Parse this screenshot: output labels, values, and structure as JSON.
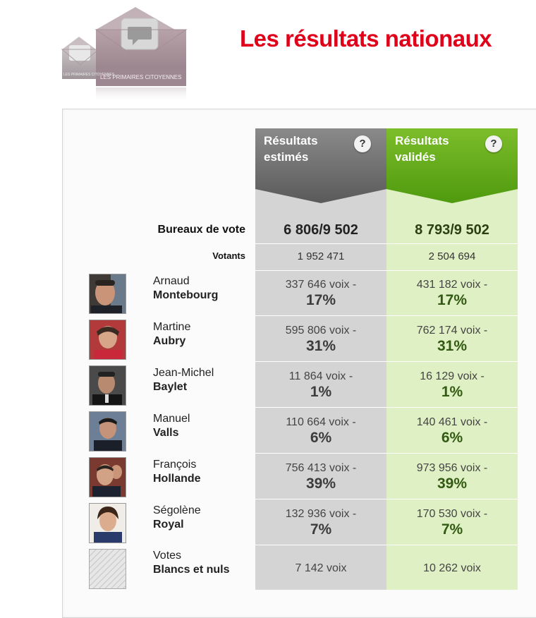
{
  "header": {
    "title": "Les résultats nationaux",
    "logo_text": "LES PRIMAIRES CITOYENNES",
    "logo_text_small": "LES PRIMAIRES CITOYENNES"
  },
  "columns": {
    "estimated": {
      "title_line1": "Résultats",
      "title_line2": "estimés",
      "help": "?"
    },
    "validated": {
      "title_line1": "Résultats",
      "title_line2": "validés",
      "help": "?"
    }
  },
  "summary": {
    "bureaux_label": "Bureaux de vote",
    "bureaux_estimated": "6 806/9 502",
    "bureaux_validated": "8 793/9 502",
    "votants_label": "Votants",
    "votants_estimated": "1 952 471",
    "votants_validated": "2 504 694"
  },
  "candidates": [
    {
      "first": "Arnaud",
      "last": "Montebourg",
      "est_voix": "337 646 voix -",
      "est_pct": "17%",
      "val_voix": "431 182 voix -",
      "val_pct": "17%"
    },
    {
      "first": "Martine",
      "last": "Aubry",
      "est_voix": "595 806 voix -",
      "est_pct": "31%",
      "val_voix": "762 174 voix -",
      "val_pct": "31%"
    },
    {
      "first": "Jean-Michel",
      "last": "Baylet",
      "est_voix": "11 864 voix -",
      "est_pct": "1%",
      "val_voix": "16 129 voix -",
      "val_pct": "1%"
    },
    {
      "first": "Manuel",
      "last": "Valls",
      "est_voix": "110 664 voix -",
      "est_pct": "6%",
      "val_voix": "140 461 voix -",
      "val_pct": "6%"
    },
    {
      "first": "François",
      "last": "Hollande",
      "est_voix": "756 413 voix -",
      "est_pct": "39%",
      "val_voix": "973 956 voix -",
      "val_pct": "39%"
    },
    {
      "first": "Ségolène",
      "last": "Royal",
      "est_voix": "132 936 voix -",
      "est_pct": "7%",
      "val_voix": "170 530 voix -",
      "val_pct": "7%"
    }
  ],
  "blank": {
    "first": "Votes",
    "last": "Blancs et nuls",
    "est_voix": "7 142 voix",
    "val_voix": "10 262 voix"
  },
  "colors": {
    "title_red": "#e0001a",
    "estimated_header": "#6e6e6e",
    "estimated_bg": "#d4d4d4",
    "validated_header": "#5aa312",
    "validated_bg": "#dff0c4"
  }
}
